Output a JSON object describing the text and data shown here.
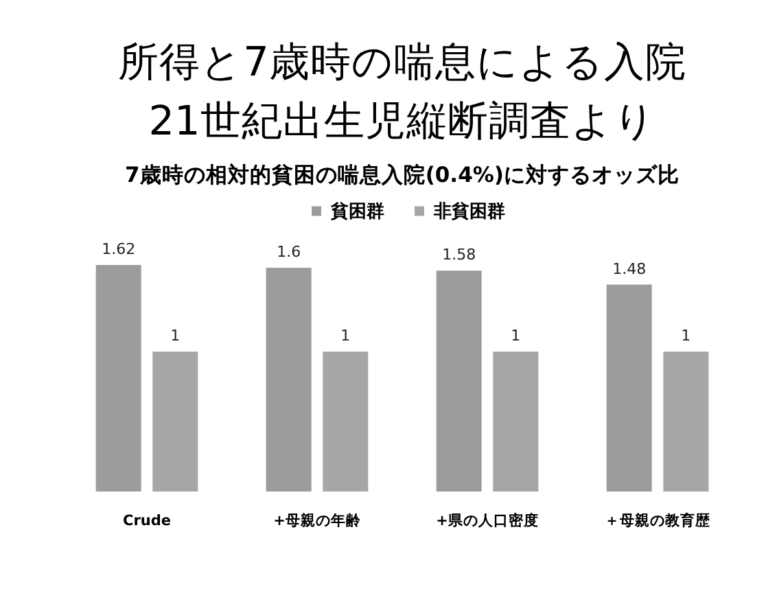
{
  "chart_data": {
    "type": "bar",
    "title": "所得と7歳時の喘息による入院\n21世紀出生児縦断調査より",
    "subtitle": "7歳時の相対的貧困の喘息入院(0.4%)に対するオッズ比",
    "categories": [
      "Crude",
      "+母親の年齢",
      "+県の人口密度",
      "＋母親の教育歴"
    ],
    "series": [
      {
        "name": "貧困群",
        "color": "#9c9c9c",
        "values": [
          1.62,
          1.6,
          1.58,
          1.48
        ]
      },
      {
        "name": "非貧困群",
        "color": "#a6a6a6",
        "values": [
          1,
          1,
          1,
          1
        ]
      }
    ],
    "data_labels": true,
    "legend": "top",
    "tick_labels": "x"
  }
}
